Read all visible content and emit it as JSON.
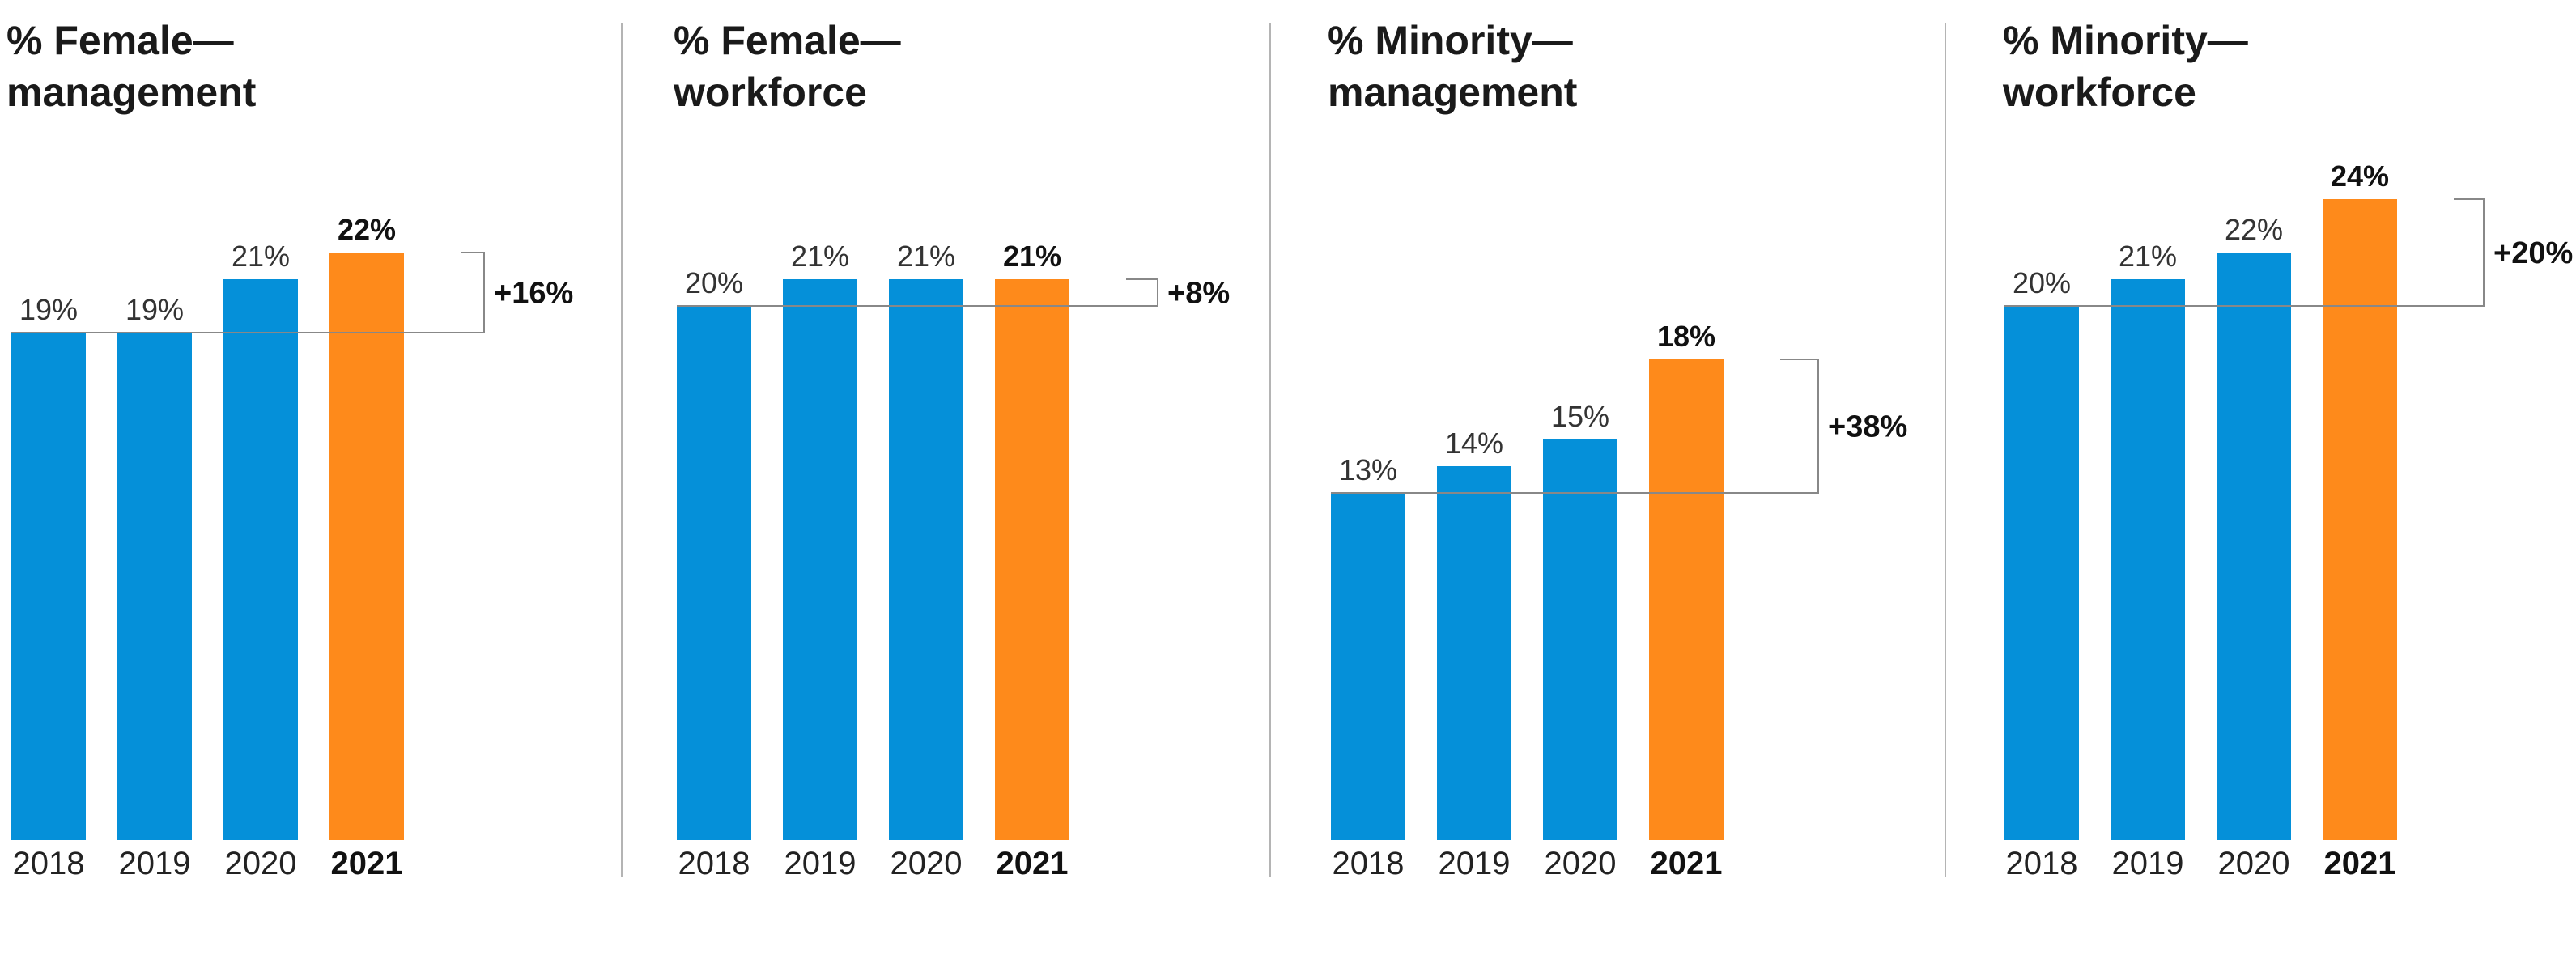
{
  "colors": {
    "bar": "#0590d9",
    "highlight": "#fe8a1b",
    "bracket": "#888888"
  },
  "chart_data": [
    {
      "type": "bar",
      "title": "% Female—\nmanagement",
      "categories": [
        "2018",
        "2019",
        "2020",
        "2021"
      ],
      "values": [
        19,
        19,
        21,
        22
      ],
      "labels": [
        "19%",
        "19%",
        "21%",
        "22%"
      ],
      "highlight_category": "2021",
      "change_label": "+16%"
    },
    {
      "type": "bar",
      "title": "% Female—\nworkforce",
      "categories": [
        "2018",
        "2019",
        "2020",
        "2021"
      ],
      "values": [
        20,
        21,
        21,
        21
      ],
      "labels": [
        "20%",
        "21%",
        "21%",
        "21%"
      ],
      "highlight_category": "2021",
      "change_label": "+8%"
    },
    {
      "type": "bar",
      "title": "% Minority—\nmanagement",
      "categories": [
        "2018",
        "2019",
        "2020",
        "2021"
      ],
      "values": [
        13,
        14,
        15,
        18
      ],
      "labels": [
        "13%",
        "14%",
        "15%",
        "18%"
      ],
      "highlight_category": "2021",
      "change_label": "+38%"
    },
    {
      "type": "bar",
      "title": "% Minority—\nworkforce",
      "categories": [
        "2018",
        "2019",
        "2020",
        "2021"
      ],
      "values": [
        20,
        21,
        22,
        24
      ],
      "labels": [
        "20%",
        "21%",
        "22%",
        "24%"
      ],
      "highlight_category": "2021",
      "change_label": "+20%"
    }
  ]
}
